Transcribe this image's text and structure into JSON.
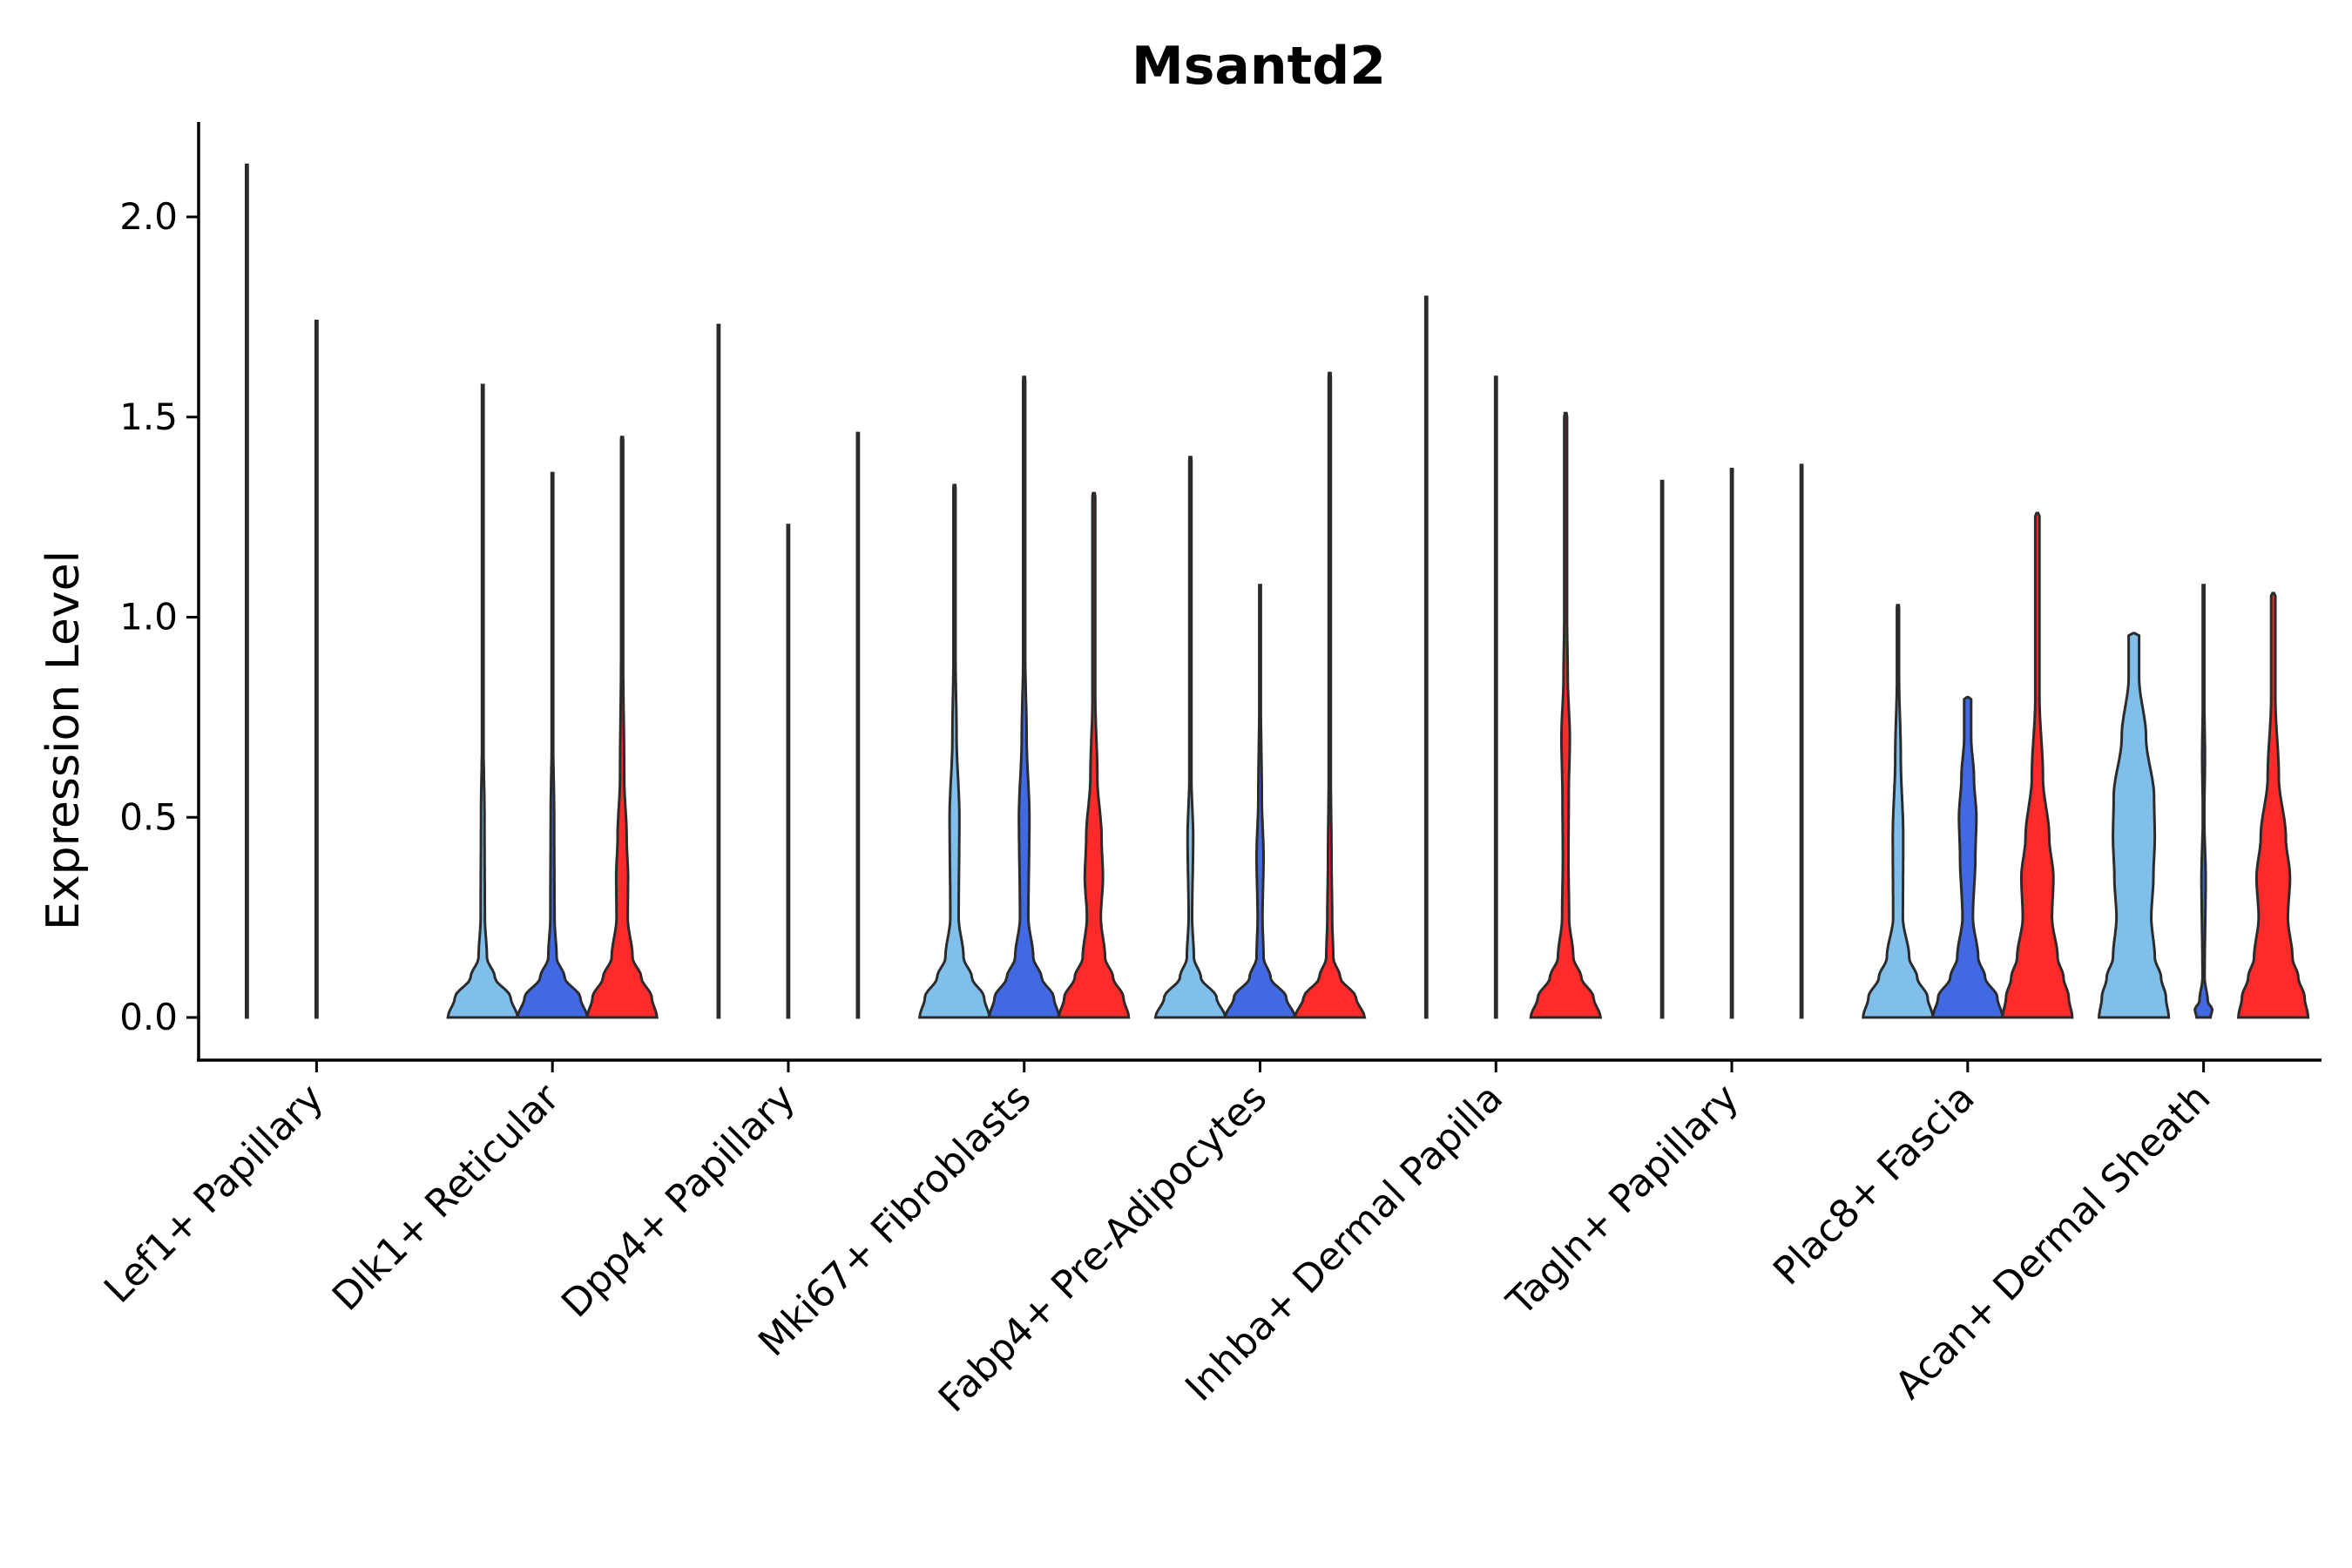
{
  "chart_data": {
    "type": "violin",
    "title": "Msantd2",
    "xlabel": "",
    "ylabel": "Expression Level",
    "ylim": [
      -0.11,
      2.24
    ],
    "yticks": [
      0.0,
      0.5,
      1.0,
      1.5,
      2.0
    ],
    "ytick_labels": [
      "0.0",
      "0.5",
      "1.0",
      "1.5",
      "2.0"
    ],
    "grid": false,
    "legend": "none",
    "series_colors": [
      "#7fbfea",
      "#4169e1",
      "#ff2a2a"
    ],
    "categories": [
      {
        "label": "Lef1+ Papillary",
        "violins": [
          {
            "max": 2.13,
            "color": "#7fbfea",
            "shape": [
              [
                0,
                0
              ],
              [
                0.02,
                0
              ]
            ]
          },
          {
            "max": 1.74,
            "color": "#4169e1",
            "shape": [
              [
                0,
                0
              ],
              [
                0.02,
                0
              ]
            ]
          }
        ]
      },
      {
        "label": "Dlk1+ Reticular",
        "violins": [
          {
            "max": 1.58,
            "color": "#7fbfea",
            "shape": [
              [
                0,
                1
              ],
              [
                0.05,
                0.8
              ],
              [
                0.1,
                0.35
              ],
              [
                0.15,
                0.12
              ],
              [
                0.25,
                0.06
              ],
              [
                0.5,
                0.05
              ],
              [
                0.7,
                0.02
              ]
            ]
          },
          {
            "max": 1.36,
            "color": "#4169e1",
            "shape": [
              [
                0,
                1
              ],
              [
                0.05,
                0.8
              ],
              [
                0.1,
                0.35
              ],
              [
                0.15,
                0.12
              ],
              [
                0.25,
                0.06
              ],
              [
                0.5,
                0.05
              ],
              [
                0.7,
                0.02
              ]
            ]
          },
          {
            "max": 1.45,
            "color": "#ff2a2a",
            "shape": [
              [
                0,
                1
              ],
              [
                0.05,
                0.85
              ],
              [
                0.1,
                0.55
              ],
              [
                0.15,
                0.3
              ],
              [
                0.25,
                0.16
              ],
              [
                0.35,
                0.17
              ],
              [
                0.45,
                0.13
              ],
              [
                0.6,
                0.06
              ],
              [
                0.9,
                0.03
              ]
            ]
          }
        ]
      },
      {
        "label": "Dpp4+ Papillary",
        "violins": [
          {
            "max": 1.73,
            "color": "#7fbfea",
            "shape": [
              [
                0,
                0
              ],
              [
                0.02,
                0
              ]
            ]
          },
          {
            "max": 1.23,
            "color": "#4169e1",
            "shape": [
              [
                0,
                0
              ],
              [
                0.02,
                0
              ]
            ]
          },
          {
            "max": 1.46,
            "color": "#ff2a2a",
            "shape": [
              [
                0,
                0
              ],
              [
                0.02,
                0
              ]
            ]
          }
        ]
      },
      {
        "label": "Mki67+ Fibroblasts",
        "violins": [
          {
            "max": 1.33,
            "color": "#7fbfea",
            "shape": [
              [
                0,
                1
              ],
              [
                0.05,
                0.85
              ],
              [
                0.1,
                0.5
              ],
              [
                0.15,
                0.26
              ],
              [
                0.25,
                0.12
              ],
              [
                0.5,
                0.14
              ],
              [
                0.7,
                0.06
              ],
              [
                0.9,
                0.03
              ]
            ]
          },
          {
            "max": 1.6,
            "color": "#4169e1",
            "shape": [
              [
                0,
                1
              ],
              [
                0.05,
                0.85
              ],
              [
                0.1,
                0.5
              ],
              [
                0.15,
                0.26
              ],
              [
                0.25,
                0.12
              ],
              [
                0.5,
                0.15
              ],
              [
                0.7,
                0.07
              ],
              [
                0.9,
                0.03
              ]
            ]
          },
          {
            "max": 1.31,
            "color": "#ff2a2a",
            "shape": [
              [
                0,
                1
              ],
              [
                0.05,
                0.85
              ],
              [
                0.1,
                0.55
              ],
              [
                0.15,
                0.32
              ],
              [
                0.25,
                0.2
              ],
              [
                0.35,
                0.26
              ],
              [
                0.45,
                0.22
              ],
              [
                0.6,
                0.1
              ],
              [
                0.8,
                0.04
              ]
            ]
          }
        ]
      },
      {
        "label": "Fabp4+ Pre-Adipocytes",
        "violins": [
          {
            "max": 1.4,
            "color": "#7fbfea",
            "shape": [
              [
                0,
                1
              ],
              [
                0.05,
                0.75
              ],
              [
                0.1,
                0.3
              ],
              [
                0.15,
                0.1
              ],
              [
                0.25,
                0.05
              ],
              [
                0.45,
                0.08
              ],
              [
                0.6,
                0.03
              ]
            ]
          },
          {
            "max": 1.08,
            "color": "#4169e1",
            "shape": [
              [
                0,
                1
              ],
              [
                0.05,
                0.75
              ],
              [
                0.1,
                0.3
              ],
              [
                0.15,
                0.1
              ],
              [
                0.25,
                0.07
              ],
              [
                0.4,
                0.1
              ],
              [
                0.55,
                0.05
              ],
              [
                0.8,
                0.02
              ]
            ]
          },
          {
            "max": 1.61,
            "color": "#ff2a2a",
            "shape": [
              [
                0,
                1
              ],
              [
                0.05,
                0.75
              ],
              [
                0.1,
                0.3
              ],
              [
                0.15,
                0.1
              ],
              [
                0.25,
                0.07
              ],
              [
                0.4,
                0.05
              ],
              [
                0.6,
                0.03
              ]
            ]
          }
        ]
      },
      {
        "label": "Inhba+ Dermal Papilla",
        "violins": [
          {
            "max": 1.8,
            "color": "#7fbfea",
            "shape": [
              [
                0,
                0
              ],
              [
                0.02,
                0
              ]
            ]
          },
          {
            "max": 1.6,
            "color": "#4169e1",
            "shape": [
              [
                0,
                0
              ],
              [
                0.02,
                0
              ]
            ]
          },
          {
            "max": 1.51,
            "color": "#ff2a2a",
            "shape": [
              [
                0,
                1
              ],
              [
                0.05,
                0.8
              ],
              [
                0.1,
                0.45
              ],
              [
                0.15,
                0.22
              ],
              [
                0.25,
                0.1
              ],
              [
                0.4,
                0.08
              ],
              [
                0.55,
                0.09
              ],
              [
                0.7,
                0.12
              ],
              [
                0.85,
                0.06
              ],
              [
                1.0,
                0.04
              ]
            ]
          }
        ]
      },
      {
        "label": "Tagln+ Papillary",
        "violins": [
          {
            "max": 1.34,
            "color": "#7fbfea",
            "shape": [
              [
                0,
                0
              ],
              [
                0.02,
                0
              ]
            ]
          },
          {
            "max": 1.37,
            "color": "#4169e1",
            "shape": [
              [
                0,
                0
              ],
              [
                0.02,
                0
              ]
            ]
          },
          {
            "max": 1.38,
            "color": "#ff2a2a",
            "shape": [
              [
                0,
                0
              ],
              [
                0.02,
                0
              ]
            ]
          }
        ]
      },
      {
        "label": "Plac8+ Fascia",
        "violins": [
          {
            "max": 1.03,
            "color": "#7fbfea",
            "shape": [
              [
                0,
                1
              ],
              [
                0.05,
                0.85
              ],
              [
                0.1,
                0.55
              ],
              [
                0.15,
                0.32
              ],
              [
                0.25,
                0.14
              ],
              [
                0.45,
                0.15
              ],
              [
                0.65,
                0.08
              ],
              [
                0.85,
                0.03
              ]
            ]
          },
          {
            "max": 0.8,
            "color": "#4169e1",
            "shape": [
              [
                0,
                1
              ],
              [
                0.05,
                0.85
              ],
              [
                0.1,
                0.5
              ],
              [
                0.15,
                0.3
              ],
              [
                0.25,
                0.15
              ],
              [
                0.4,
                0.22
              ],
              [
                0.5,
                0.25
              ],
              [
                0.6,
                0.18
              ],
              [
                0.7,
                0.1
              ]
            ]
          },
          {
            "max": 1.26,
            "color": "#ff2a2a",
            "shape": [
              [
                0,
                1
              ],
              [
                0.05,
                0.9
              ],
              [
                0.1,
                0.75
              ],
              [
                0.15,
                0.58
              ],
              [
                0.25,
                0.42
              ],
              [
                0.35,
                0.46
              ],
              [
                0.45,
                0.34
              ],
              [
                0.6,
                0.16
              ],
              [
                0.8,
                0.06
              ]
            ]
          }
        ]
      },
      {
        "label": "Acan+ Dermal Sheath",
        "violins": [
          {
            "max": 0.96,
            "color": "#7fbfea",
            "shape": [
              [
                0,
                1
              ],
              [
                0.05,
                0.92
              ],
              [
                0.1,
                0.78
              ],
              [
                0.15,
                0.6
              ],
              [
                0.25,
                0.5
              ],
              [
                0.35,
                0.56
              ],
              [
                0.45,
                0.6
              ],
              [
                0.55,
                0.58
              ],
              [
                0.7,
                0.35
              ],
              [
                0.85,
                0.15
              ]
            ]
          },
          {
            "max": 1.08,
            "color": "#4169e1",
            "shape": [
              [
                0,
                0.2
              ],
              [
                0.02,
                0.25
              ],
              [
                0.04,
                0.12
              ],
              [
                0.1,
                0.03
              ],
              [
                0.35,
                0.06
              ],
              [
                0.5,
                0.02
              ],
              [
                0.65,
                0.04
              ],
              [
                0.8,
                0.02
              ]
            ]
          },
          {
            "max": 1.06,
            "color": "#ff2a2a",
            "shape": [
              [
                0,
                1
              ],
              [
                0.05,
                0.9
              ],
              [
                0.1,
                0.72
              ],
              [
                0.15,
                0.55
              ],
              [
                0.25,
                0.42
              ],
              [
                0.35,
                0.48
              ],
              [
                0.45,
                0.36
              ],
              [
                0.6,
                0.16
              ],
              [
                0.8,
                0.06
              ]
            ]
          }
        ]
      }
    ]
  }
}
